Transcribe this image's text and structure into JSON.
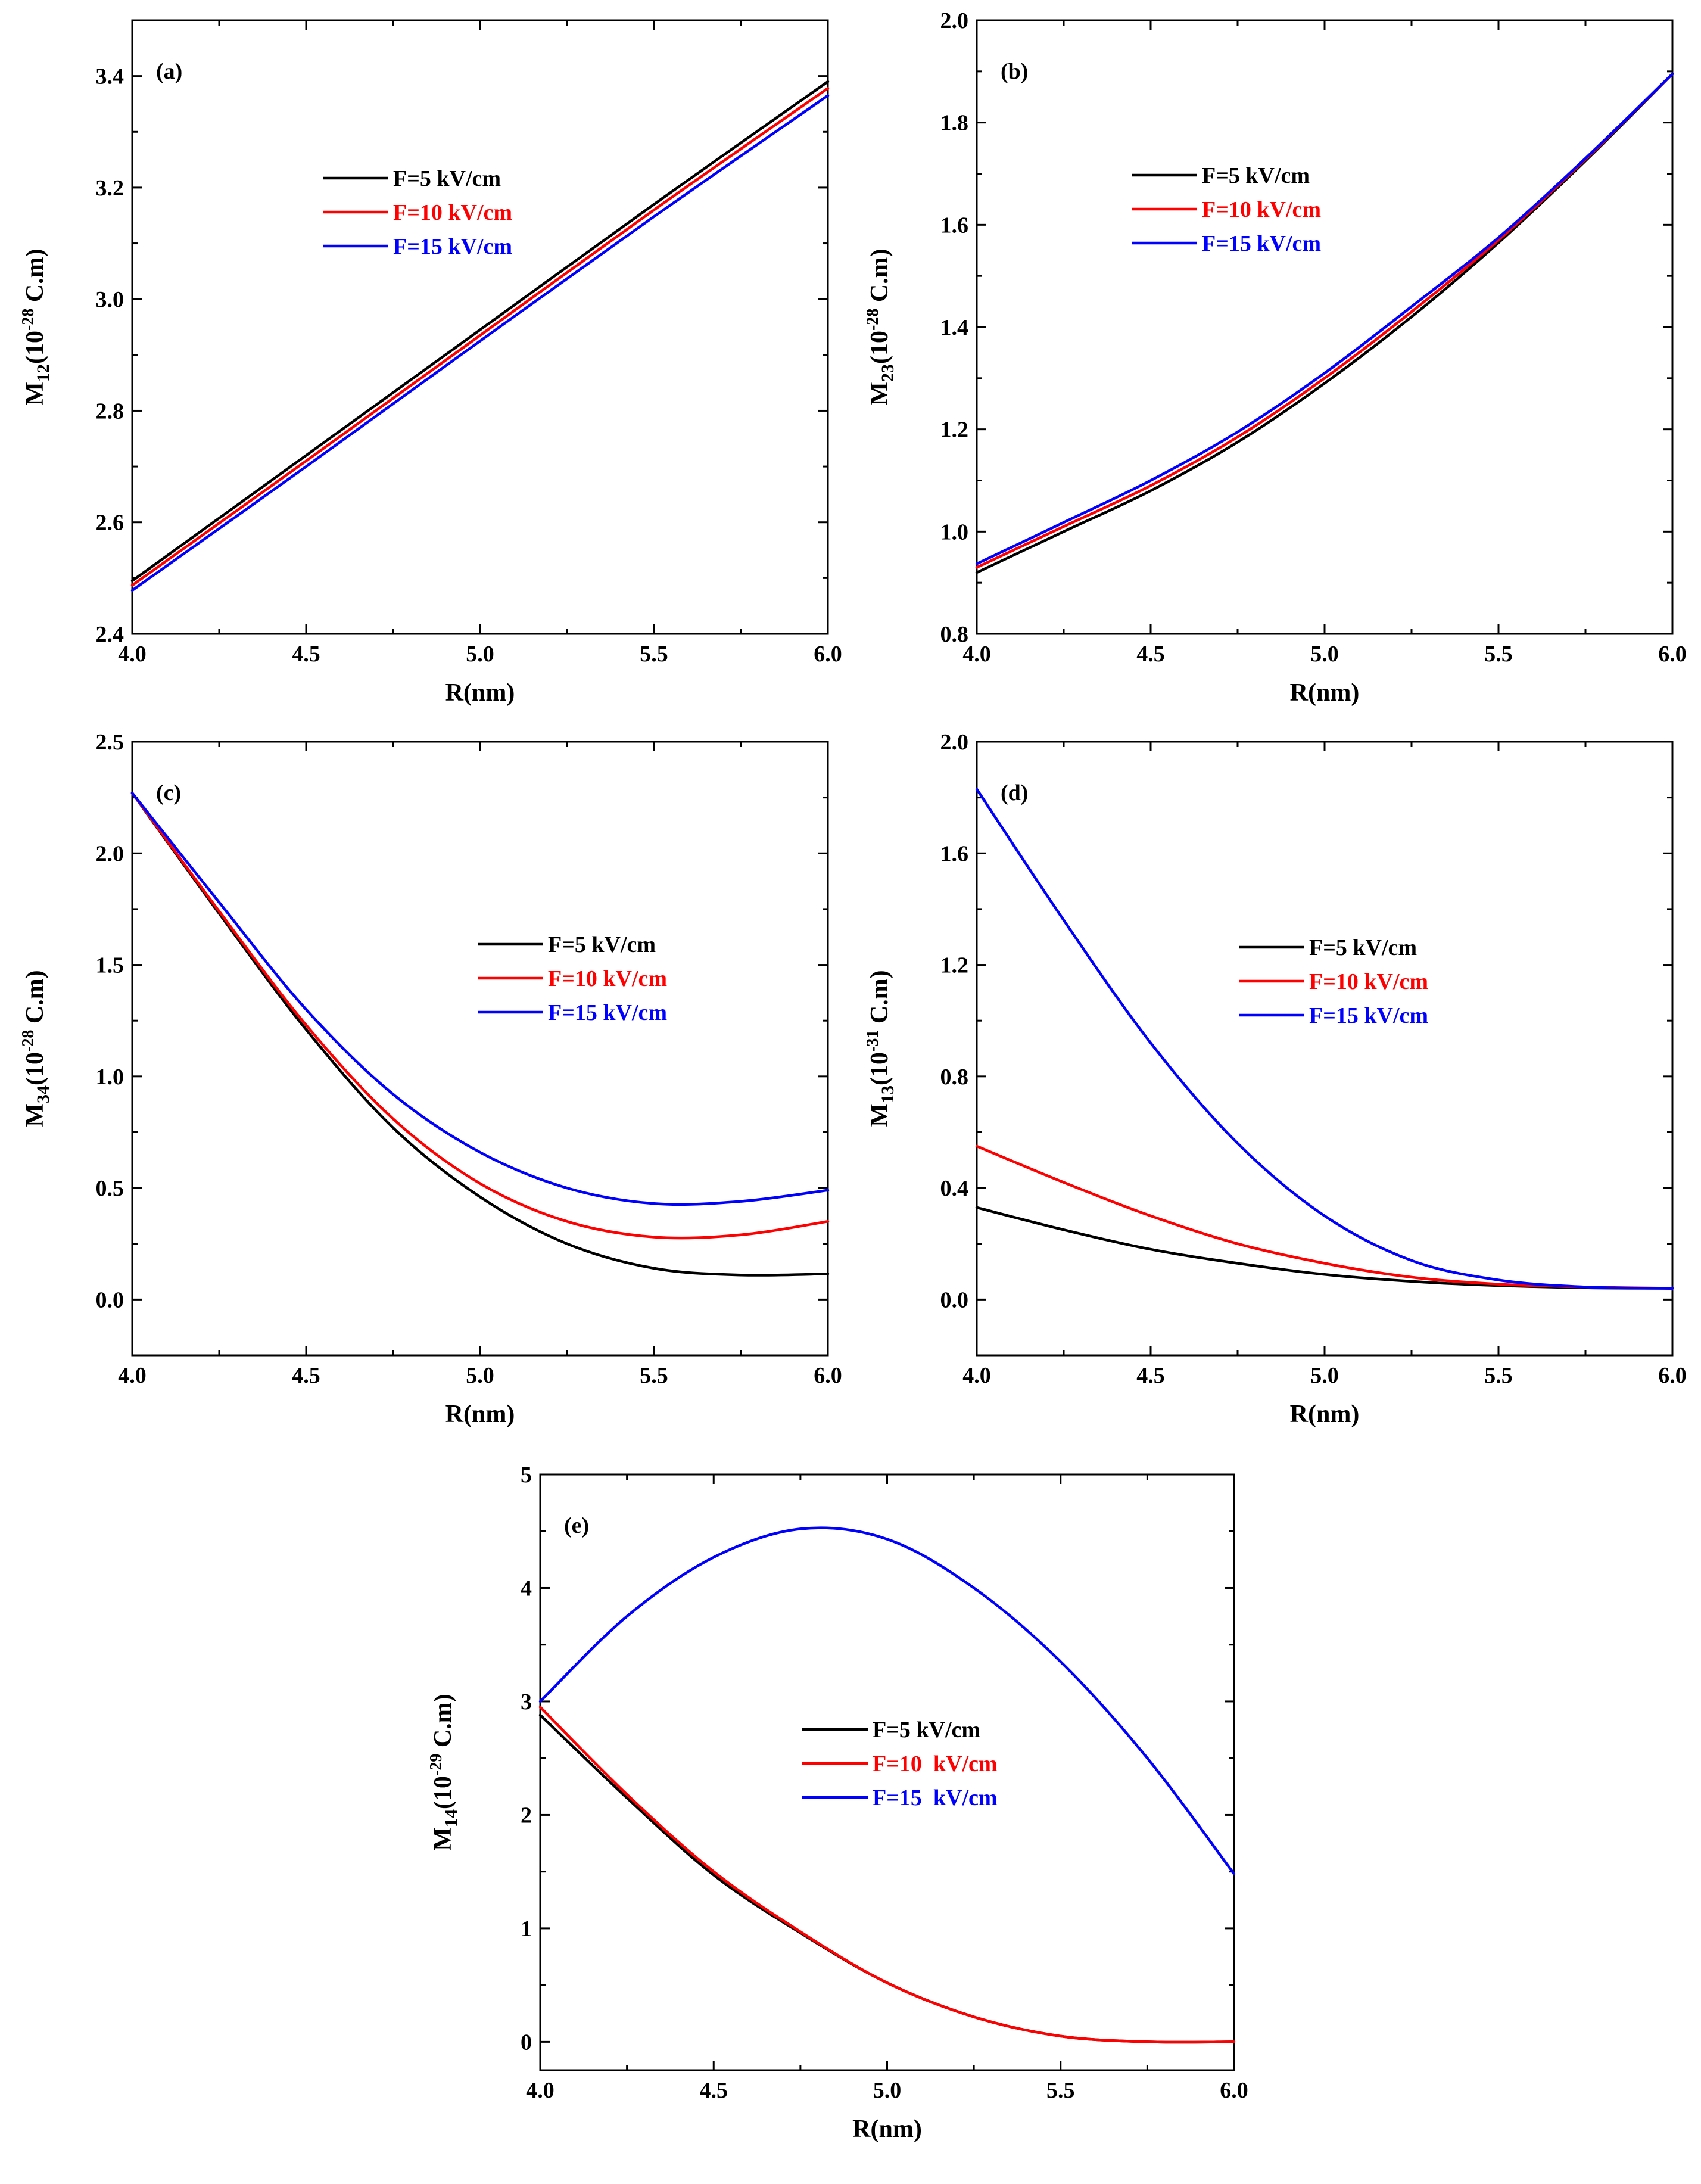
{
  "colors": {
    "black": "#000000",
    "red": "#ff0000",
    "blue": "#0000ff"
  },
  "chart_data": [
    {
      "id": "a",
      "type": "line",
      "panel_label": "(a)",
      "xlabel": "R(nm)",
      "ylabel": {
        "base": "M",
        "sub": "12",
        "open": "(10",
        "sup": "-28",
        "close": " C.m)"
      },
      "xlim": [
        4.0,
        6.0
      ],
      "ylim": [
        2.4,
        3.5
      ],
      "xticks": [
        "4.0",
        "4.5",
        "5.0",
        "5.5",
        "6.0"
      ],
      "yticks": [
        "2.4",
        "2.6",
        "2.8",
        "3.0",
        "3.2",
        "3.4"
      ],
      "legend": {
        "position": "upper-left"
      },
      "x": [
        4.0,
        4.5,
        5.0,
        5.5,
        6.0
      ],
      "series": [
        {
          "name": "F=5 kV/cm",
          "color": "#000000",
          "values": [
            2.495,
            2.72,
            2.945,
            3.17,
            3.39
          ]
        },
        {
          "name": "F=10 kV/cm",
          "color": "#ff0000",
          "values": [
            2.487,
            2.71,
            2.935,
            3.16,
            3.378
          ]
        },
        {
          "name": "F=15 kV/cm",
          "color": "#0000ff",
          "values": [
            2.478,
            2.7,
            2.925,
            3.148,
            3.365
          ]
        }
      ]
    },
    {
      "id": "b",
      "type": "line",
      "panel_label": "(b)",
      "xlabel": "R(nm)",
      "ylabel": {
        "base": "M",
        "sub": "23",
        "open": "(10",
        "sup": "-28",
        "close": " C.m)"
      },
      "xlim": [
        4.0,
        6.0
      ],
      "ylim": [
        0.8,
        2.0
      ],
      "xticks": [
        "4.0",
        "4.5",
        "5.0",
        "5.5",
        "6.0"
      ],
      "yticks": [
        "0.8",
        "1.0",
        "1.2",
        "1.4",
        "1.6",
        "1.8",
        "2.0"
      ],
      "legend": {
        "position": "upper-left"
      },
      "x": [
        4.0,
        4.25,
        4.5,
        4.75,
        5.0,
        5.25,
        5.5,
        5.75,
        6.0
      ],
      "series": [
        {
          "name": "F=5 kV/cm",
          "color": "#000000",
          "values": [
            0.92,
            1.0,
            1.08,
            1.175,
            1.29,
            1.42,
            1.565,
            1.725,
            1.895
          ]
        },
        {
          "name": "F=10 kV/cm",
          "color": "#ff0000",
          "values": [
            0.93,
            1.01,
            1.09,
            1.185,
            1.3,
            1.43,
            1.57,
            1.728,
            1.895
          ]
        },
        {
          "name": "F=15 kV/cm",
          "color": "#0000ff",
          "values": [
            0.937,
            1.018,
            1.1,
            1.195,
            1.31,
            1.44,
            1.575,
            1.73,
            1.895
          ]
        }
      ]
    },
    {
      "id": "c",
      "type": "line",
      "panel_label": "(c)",
      "xlabel": "R(nm)",
      "ylabel": {
        "base": "M",
        "sub": "34",
        "open": "(10",
        "sup": "-28",
        "close": " C.m)"
      },
      "xlim": [
        4.0,
        6.0
      ],
      "ylim": [
        -0.25,
        2.5
      ],
      "xticks": [
        "4.0",
        "4.5",
        "5.0",
        "5.5",
        "6.0"
      ],
      "yticks": [
        "0.0",
        "0.5",
        "1.0",
        "1.5",
        "2.0",
        "2.5"
      ],
      "legend": {
        "position": "center-right"
      },
      "x": [
        4.0,
        4.25,
        4.5,
        4.75,
        5.0,
        5.25,
        5.5,
        5.75,
        6.0
      ],
      "series": [
        {
          "name": "F=5 kV/cm",
          "color": "#000000",
          "values": [
            2.27,
            1.73,
            1.21,
            0.77,
            0.46,
            0.25,
            0.14,
            0.11,
            0.115
          ]
        },
        {
          "name": "F=10 kV/cm",
          "color": "#ff0000",
          "values": [
            2.27,
            1.74,
            1.23,
            0.81,
            0.52,
            0.35,
            0.28,
            0.29,
            0.35
          ]
        },
        {
          "name": "F=15 kV/cm",
          "color": "#0000ff",
          "values": [
            2.27,
            1.78,
            1.3,
            0.92,
            0.66,
            0.5,
            0.43,
            0.44,
            0.49
          ]
        }
      ]
    },
    {
      "id": "d",
      "type": "line",
      "panel_label": "(d)",
      "xlabel": "R(nm)",
      "ylabel": {
        "base": "M",
        "sub": "13",
        "open": "(10",
        "sup": "-31",
        "close": " C.m)"
      },
      "xlim": [
        4.0,
        6.0
      ],
      "ylim": [
        -0.2,
        2.0
      ],
      "xticks": [
        "4.0",
        "4.5",
        "5.0",
        "5.5",
        "6.0"
      ],
      "yticks": [
        "0.0",
        "0.4",
        "0.8",
        "1.2",
        "1.6",
        "2.0"
      ],
      "legend": {
        "position": "center-right"
      },
      "x": [
        4.0,
        4.25,
        4.5,
        4.75,
        5.0,
        5.25,
        5.5,
        5.75,
        6.0
      ],
      "series": [
        {
          "name": "F=5 kV/cm",
          "color": "#000000",
          "values": [
            0.33,
            0.25,
            0.18,
            0.13,
            0.09,
            0.065,
            0.05,
            0.042,
            0.04
          ]
        },
        {
          "name": "F=10 kV/cm",
          "color": "#ff0000",
          "values": [
            0.55,
            0.42,
            0.3,
            0.2,
            0.13,
            0.08,
            0.055,
            0.045,
            0.04
          ]
        },
        {
          "name": "F=15 kV/cm",
          "color": "#0000ff",
          "values": [
            1.83,
            1.36,
            0.92,
            0.56,
            0.3,
            0.14,
            0.07,
            0.045,
            0.04
          ]
        }
      ]
    },
    {
      "id": "e",
      "type": "line",
      "panel_label": "(e)",
      "xlabel": "R(nm)",
      "ylabel": {
        "base": "M",
        "sub": "14",
        "open": "(10",
        "sup": "-29",
        "close": " C.m)"
      },
      "xlim": [
        4.0,
        6.0
      ],
      "ylim": [
        -0.25,
        5.0
      ],
      "xticks": [
        "4.0",
        "4.5",
        "5.0",
        "5.5",
        "6.0"
      ],
      "yticks": [
        "0",
        "1",
        "2",
        "3",
        "4",
        "5"
      ],
      "legend": {
        "position": "center"
      },
      "x": [
        4.0,
        4.25,
        4.5,
        4.75,
        5.0,
        5.25,
        5.5,
        5.75,
        6.0
      ],
      "series": [
        {
          "name": "F=5 kV/cm",
          "color": "#000000",
          "values": [
            2.88,
            2.15,
            1.47,
            0.96,
            0.52,
            0.22,
            0.05,
            0.0,
            0.0
          ]
        },
        {
          "name": "F=10  kV/cm",
          "color": "#ff0000",
          "values": [
            2.95,
            2.18,
            1.5,
            0.97,
            0.52,
            0.22,
            0.05,
            0.0,
            0.0
          ]
        },
        {
          "name": "F=15  kV/cm",
          "color": "#0000ff",
          "values": [
            3.0,
            3.75,
            4.27,
            4.52,
            4.43,
            4.0,
            3.35,
            2.5,
            1.48
          ]
        }
      ]
    }
  ]
}
